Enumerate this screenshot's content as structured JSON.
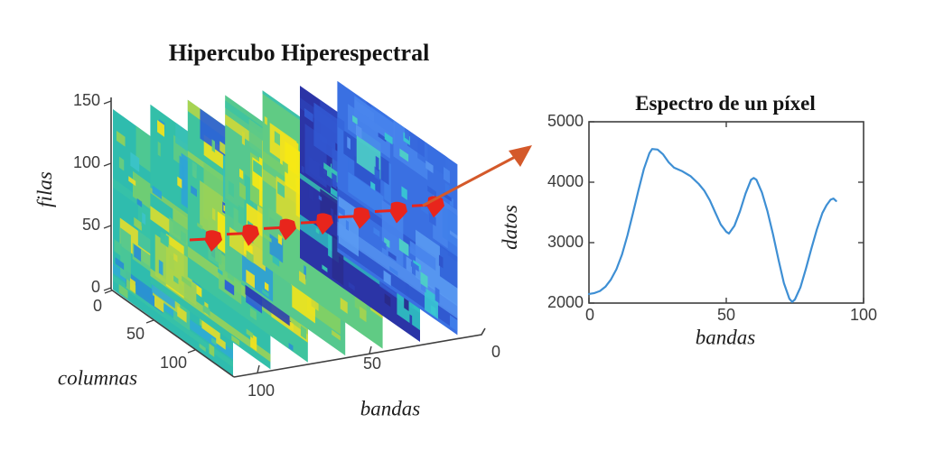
{
  "left_plot": {
    "title": "Hipercubo Hiperespectral",
    "xlabel": "columnas",
    "ylabel": "filas",
    "zlabel": "bandas",
    "filas_ticks": [
      "150",
      "100",
      "50",
      "0"
    ],
    "columnas_ticks": [
      "0",
      "50",
      "100"
    ],
    "bandas_ticks": [
      "100",
      "50",
      "0"
    ],
    "n_slices": 7,
    "marker_color": "#e8251c",
    "slices": [
      {
        "base": "#2fbcae",
        "colors": [
          "#38c2a6",
          "#4cc795",
          "#68cc7e",
          "#8ed05c",
          "#b4d548",
          "#d8da32",
          "#2fa9d8",
          "#3bc3c8",
          "#e6dd2a",
          "#52c98f",
          "#76ce6e",
          "#2a8fd2"
        ],
        "hot": false
      },
      {
        "base": "#33bfa9",
        "colors": [
          "#3ec4a0",
          "#5aca88",
          "#7ecf66",
          "#a6d44e",
          "#ccd938",
          "#ecdf24",
          "#2da4d6",
          "#38c0b6",
          "#f0e11e",
          "#60cb82",
          "#8ed05c",
          "#2e96d4"
        ],
        "hot": false
      },
      {
        "base": "#3fc49e",
        "colors": [
          "#52c992",
          "#74ce70",
          "#9ad356",
          "#c2d83e",
          "#e2dc2c",
          "#f2e31c",
          "#2c92d4",
          "#2b5fd8",
          "#36bfba",
          "#62cc80",
          "#eadf26",
          "#2a3fb0"
        ],
        "hot": true
      },
      {
        "base": "#56c88e",
        "colors": [
          "#e8de28",
          "#f4e41a",
          "#d0d936",
          "#acd44c",
          "#84d062",
          "#5eca86",
          "#3cc3a4",
          "#2f9ed6",
          "#f0e120",
          "#dedb2e",
          "#bcd644",
          "#48c798"
        ],
        "hot": true
      },
      {
        "base": "#60cb84",
        "colors": [
          "#f0e120",
          "#e2dc2c",
          "#c8d83a",
          "#a2d350",
          "#78ce6c",
          "#50c893",
          "#36bfb4",
          "#2d94d6",
          "#f6e516",
          "#d6da32",
          "#b0d54a",
          "#66cc7e"
        ],
        "hot": true
      },
      {
        "base": "#2b34a6",
        "colors": [
          "#2a2e96",
          "#2c3cb2",
          "#3052ce",
          "#2a2a88",
          "#2e46be",
          "#3668da",
          "#2fc2c2",
          "#38cab2",
          "#2b36a8",
          "#2d42b8",
          "#3258d2",
          "#2a2c90"
        ],
        "hot": false
      },
      {
        "base": "#3a70e2",
        "colors": [
          "#3566dc",
          "#3b76e6",
          "#4884ec",
          "#2f58d0",
          "#5694f0",
          "#3a70e2",
          "#38c6d2",
          "#4ed0c6",
          "#4080ea",
          "#3162d8",
          "#5a9af2",
          "#2e54cc"
        ],
        "hot": false
      }
    ]
  },
  "connector": {
    "color": "#d4592a"
  },
  "right_plot": {
    "title": "Espectro de un píxel",
    "xlabel": "bandas",
    "ylabel": "datos",
    "x_ticks": [
      "0",
      "50",
      "100"
    ],
    "y_ticks": [
      "5000",
      "4000",
      "3000",
      "2000"
    ],
    "line_color": "#3e8fd4"
  },
  "chart_data": [
    {
      "type": "heatmap",
      "title": "Hipercubo Hiperespectral",
      "xlabel": "columnas",
      "ylabel": "filas",
      "zlabel": "bandas",
      "x_ticks": [
        0,
        50,
        100
      ],
      "y_ticks": [
        0,
        50,
        100,
        150
      ],
      "z_ticks": [
        100,
        50,
        0
      ],
      "xlim": [
        0,
        145
      ],
      "ylim": [
        0,
        150
      ],
      "zlim": [
        0,
        110
      ],
      "n_slices": 7,
      "grid": false,
      "legend_position": "none",
      "description": "Seven hyperspectral band slices (filas x columnas images, parula colormap) stacked in 3D along the bandas axis; first five slices teal-green-yellow, sixth dark navy, seventh medium blue; red cone markers trace one pixel through the slices toward the spectrum plot"
    },
    {
      "type": "line",
      "title": "Espectro de un píxel",
      "xlabel": "bandas",
      "ylabel": "datos",
      "xlim": [
        0,
        100
      ],
      "ylim": [
        2000,
        5000
      ],
      "x_ticks": [
        0,
        50,
        100
      ],
      "y_ticks": [
        2000,
        3000,
        4000,
        5000
      ],
      "grid": false,
      "legend_position": "none",
      "line_color": "#3e8fd4",
      "x": [
        0,
        2,
        4,
        6,
        8,
        10,
        12,
        14,
        16,
        18,
        20,
        22,
        23,
        25,
        27,
        29,
        31,
        34,
        37,
        40,
        42,
        44,
        46,
        48,
        50,
        51,
        53,
        55,
        57,
        59,
        60,
        61,
        63,
        65,
        67,
        69,
        71,
        73,
        74,
        75,
        77,
        79,
        81,
        83,
        85,
        86.5,
        88,
        89,
        90
      ],
      "y": [
        2150,
        2165,
        2200,
        2270,
        2390,
        2560,
        2800,
        3120,
        3480,
        3860,
        4220,
        4480,
        4550,
        4540,
        4460,
        4330,
        4240,
        4180,
        4100,
        3970,
        3860,
        3700,
        3500,
        3300,
        3180,
        3150,
        3280,
        3520,
        3810,
        4040,
        4070,
        4040,
        3830,
        3520,
        3140,
        2720,
        2330,
        2070,
        2020,
        2060,
        2260,
        2570,
        2900,
        3220,
        3490,
        3620,
        3710,
        3730,
        3690
      ]
    }
  ]
}
